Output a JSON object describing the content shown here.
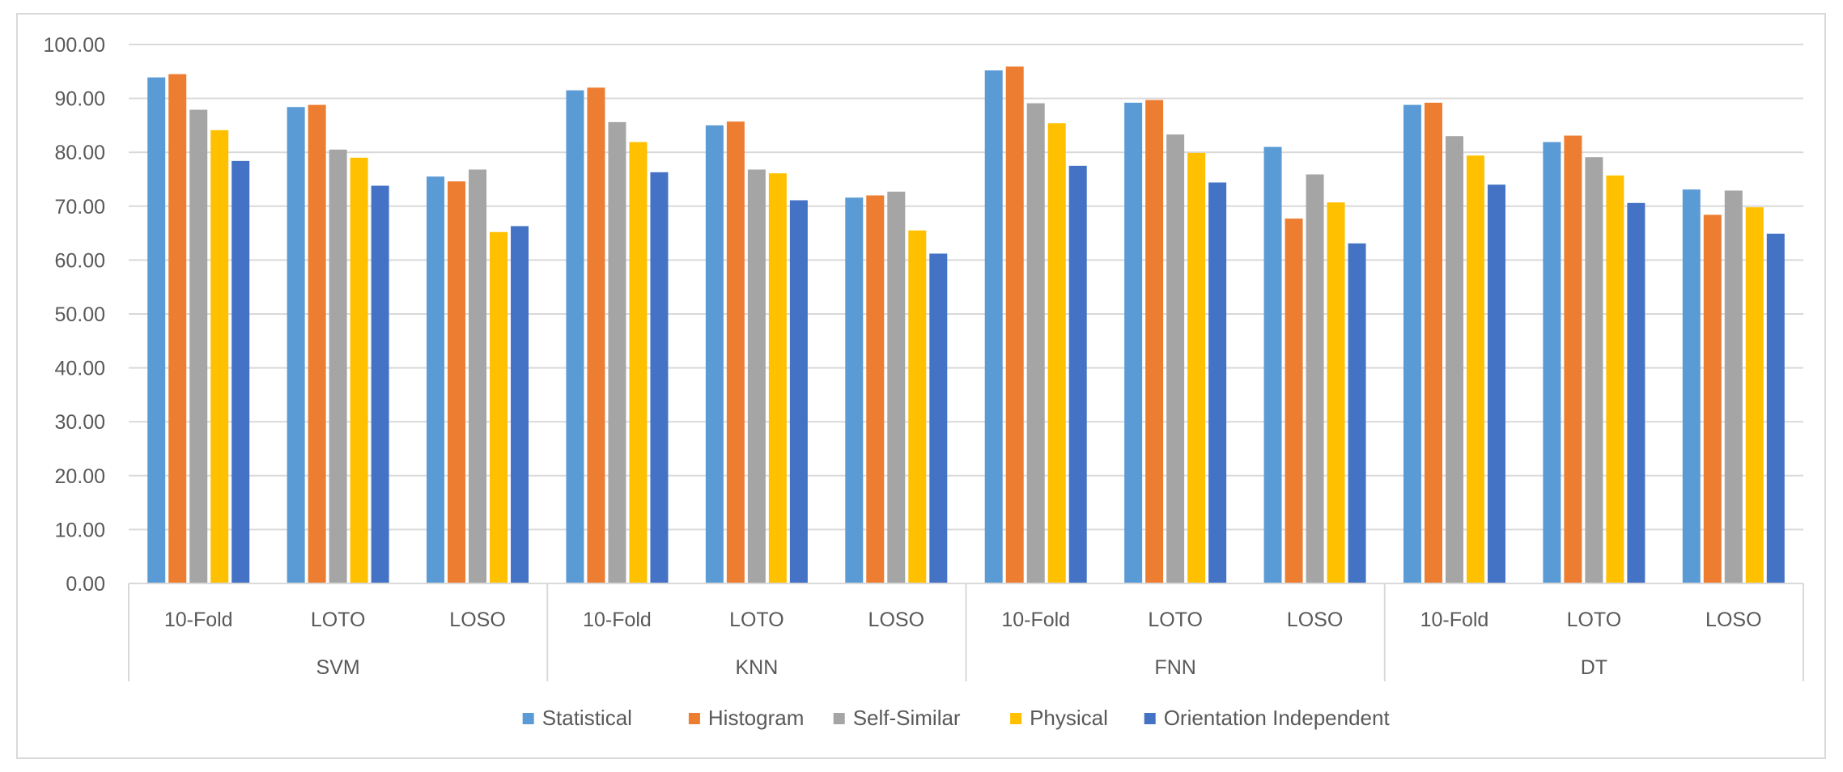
{
  "chart_data": {
    "type": "bar",
    "groups": [
      "SVM",
      "KNN",
      "FNN",
      "DT"
    ],
    "subcategories": [
      "10-Fold",
      "LOTO",
      "LOSO"
    ],
    "series": [
      {
        "name": "Statistical",
        "color": "#5B9BD5",
        "values": [
          93.9,
          88.4,
          75.5,
          91.5,
          85.0,
          71.6,
          95.2,
          89.2,
          81.0,
          88.8,
          81.9,
          73.1
        ]
      },
      {
        "name": "Histogram",
        "color": "#ED7D31",
        "values": [
          94.5,
          88.8,
          74.6,
          92.0,
          85.7,
          72.0,
          95.9,
          89.7,
          67.7,
          89.2,
          83.1,
          68.4
        ]
      },
      {
        "name": "Self-Similar",
        "color": "#A5A5A5",
        "values": [
          87.9,
          80.5,
          76.8,
          85.6,
          76.8,
          72.7,
          89.1,
          83.3,
          75.9,
          83.0,
          79.1,
          72.9
        ]
      },
      {
        "name": "Physical",
        "color": "#FFC000",
        "values": [
          84.1,
          79.0,
          65.2,
          81.9,
          76.1,
          65.5,
          85.4,
          79.9,
          70.7,
          79.4,
          75.7,
          69.8
        ]
      },
      {
        "name": "Orientation Independent",
        "color": "#4472C4",
        "values": [
          78.4,
          73.8,
          66.3,
          76.3,
          71.1,
          61.2,
          77.5,
          74.4,
          63.1,
          74.0,
          70.6,
          64.9
        ]
      }
    ],
    "ylim": [
      0,
      100
    ],
    "yticks": [
      "0.00",
      "10.00",
      "20.00",
      "30.00",
      "40.00",
      "50.00",
      "60.00",
      "70.00",
      "80.00",
      "90.00",
      "100.00"
    ],
    "grid": true,
    "legend_position": "bottom",
    "title": "",
    "xlabel": "",
    "ylabel": ""
  }
}
